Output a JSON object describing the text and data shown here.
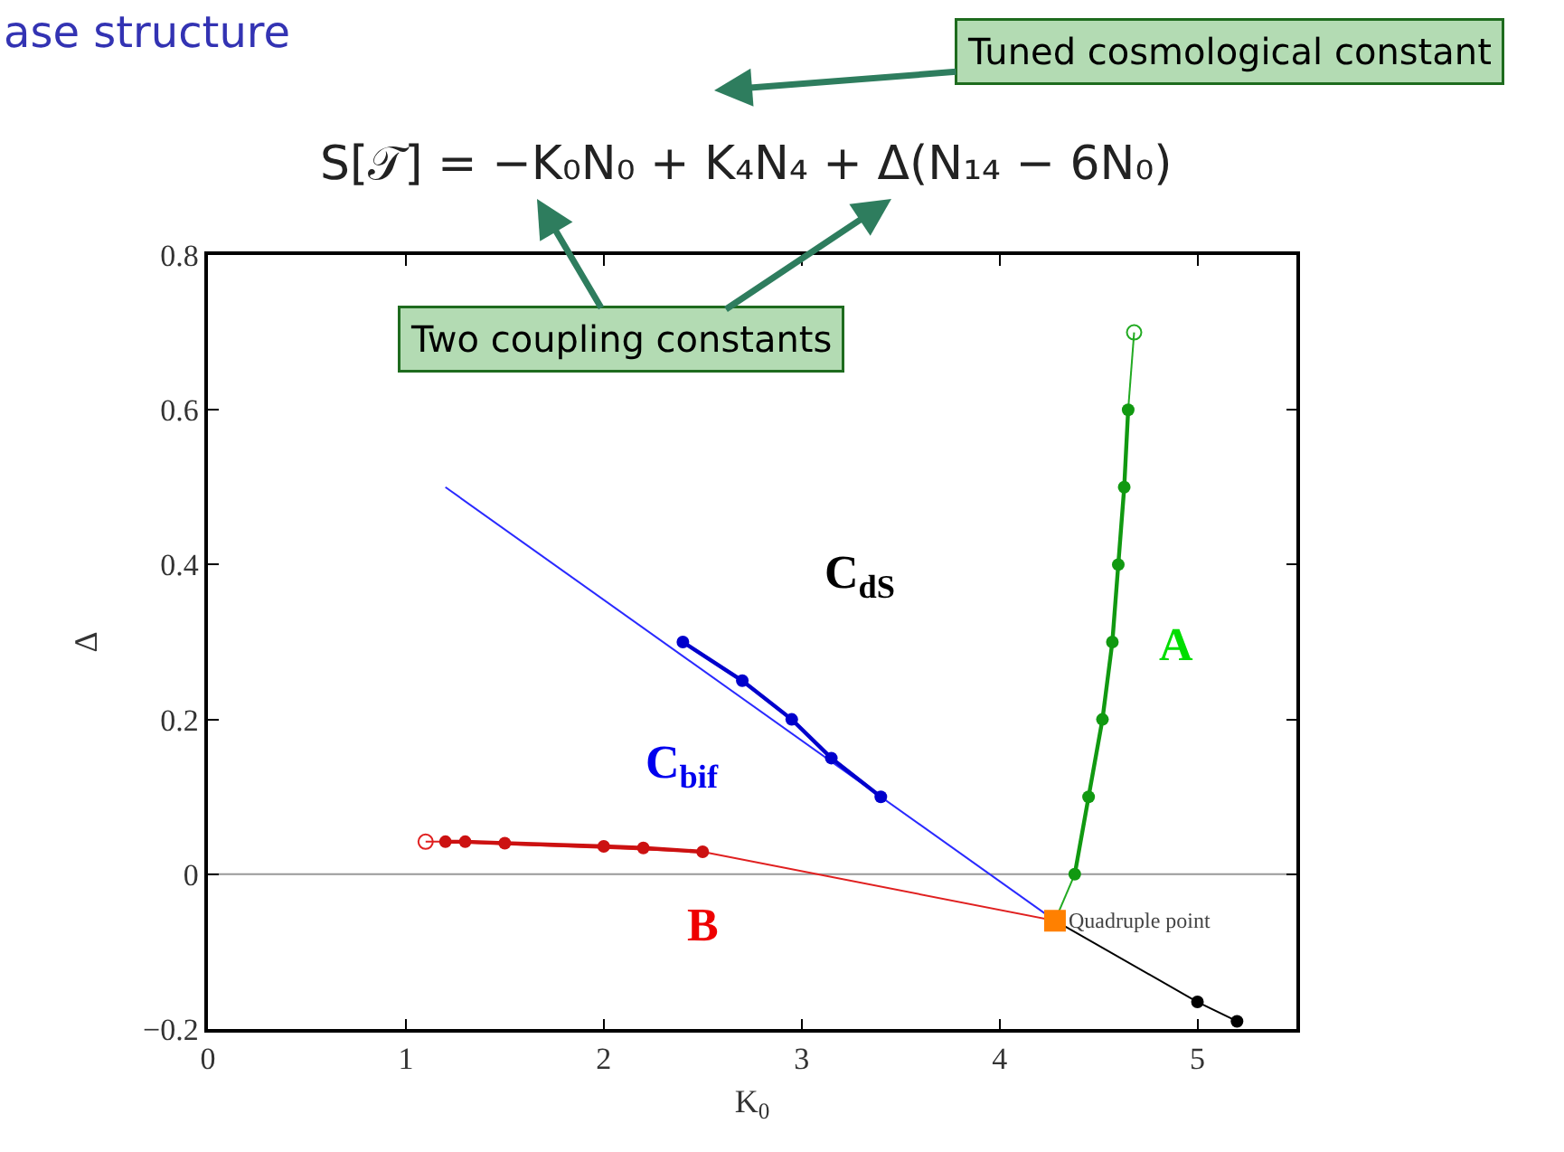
{
  "chart_data": {
    "type": "line",
    "title": "ase structure",
    "subtitle": "S[𝒯] = −K₀N₀ + K₄N₄ + Δ(N₁₄ − 6N₀)",
    "xlabel": "K$_{0}$",
    "ylabel": "Δ",
    "xlim": [
      0,
      5.5
    ],
    "xticks": [
      0,
      1,
      2,
      3,
      4,
      5
    ],
    "ylim": [
      -0.2,
      0.8
    ],
    "yticks": [
      -0.2,
      0,
      0.2,
      0.4,
      0.6,
      0.8
    ],
    "grid": false,
    "series": [
      {
        "type": "line",
        "color": "#2a2aff",
        "marker": "none",
        "x": [
          1.2,
          4.28
        ],
        "values": [
          0.5,
          -0.06
        ]
      },
      {
        "type": "line",
        "color": "#0000cc",
        "marker": "circle",
        "x": [
          2.4,
          2.7,
          2.95,
          3.15,
          3.4
        ],
        "values": [
          0.3,
          0.25,
          0.2,
          0.15,
          0.1
        ]
      },
      {
        "type": "line",
        "color": "#e02020",
        "marker": "none",
        "x": [
          1.1,
          1.2,
          2.5,
          4.28
        ],
        "values": [
          0.042,
          0.042,
          0.029,
          -0.06
        ]
      },
      {
        "type": "line",
        "color": "#cc1111",
        "marker": "circle",
        "x": [
          1.2,
          1.3,
          1.5,
          2.0,
          2.2,
          2.5
        ],
        "values": [
          0.042,
          0.042,
          0.04,
          0.036,
          0.034,
          0.029
        ]
      },
      {
        "type": "scatter",
        "color": "#e02020",
        "marker": "circle",
        "x": [
          1.1
        ],
        "values": [
          0.042
        ]
      },
      {
        "type": "line",
        "color": "#22aa22",
        "marker": "none",
        "x": [
          4.28,
          4.38,
          4.5,
          4.65,
          4.68
        ],
        "values": [
          -0.06,
          0.0,
          null,
          0.6,
          0.7
        ]
      },
      {
        "type": "line",
        "color": "#119911",
        "marker": "circle",
        "x": [
          4.38,
          4.45,
          4.52,
          4.57,
          4.6,
          4.63,
          4.65
        ],
        "values": [
          0.0,
          0.1,
          0.2,
          0.3,
          0.4,
          0.5,
          0.6
        ]
      },
      {
        "type": "scatter",
        "color": "#22aa22",
        "marker": "circle",
        "x": [
          4.68
        ],
        "values": [
          0.7
        ]
      },
      {
        "type": "line",
        "color": "#000000",
        "marker": "circle",
        "x": [
          4.28,
          5.0,
          5.2
        ],
        "values": [
          -0.06,
          -0.165,
          -0.19
        ]
      },
      {
        "type": "scatter",
        "color": "#ff8000",
        "marker": "square",
        "x": [
          4.28
        ],
        "values": [
          -0.06
        ]
      }
    ],
    "ref_lines": [
      {
        "axis": "y",
        "value": 0,
        "color": "#999999"
      }
    ],
    "annotations": [
      {
        "text": "Quadruple point",
        "x": 4.28,
        "y": -0.06
      },
      "C$_{dS}$",
      "A",
      "C$_{bif}$",
      "B",
      "Tuned cosmological constant",
      "Two coupling constants"
    ]
  }
}
